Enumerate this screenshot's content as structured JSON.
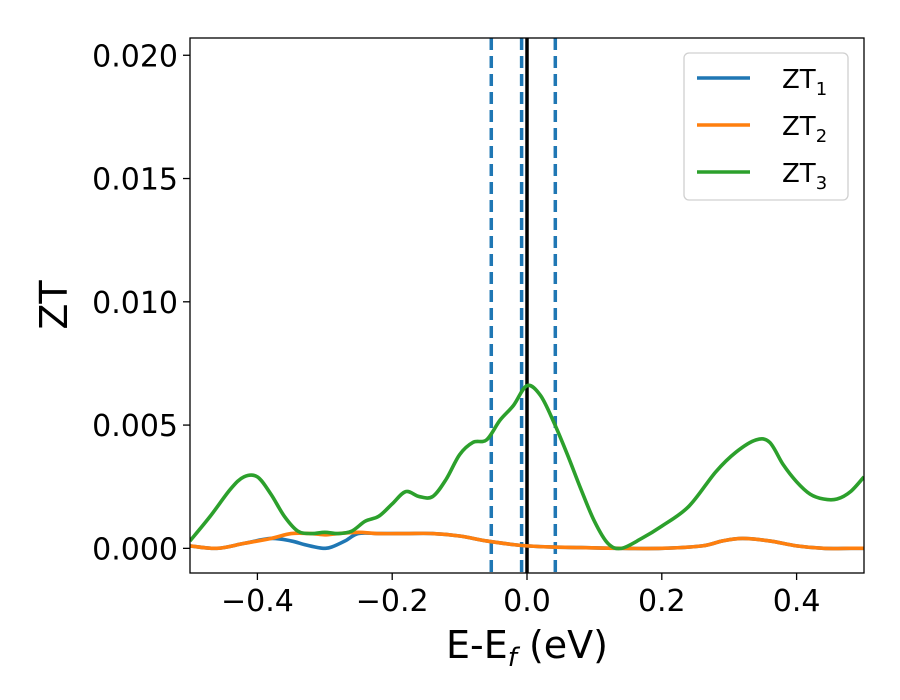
{
  "chart_data": {
    "type": "line",
    "title": "",
    "xlabel": {
      "main": "E-E",
      "sub": "f",
      "rest": " (eV)"
    },
    "ylabel": "ZT",
    "xlim": [
      -0.5,
      0.5
    ],
    "ylim": [
      -0.001,
      0.0207
    ],
    "xticks": [
      -0.4,
      -0.2,
      0.0,
      0.2,
      0.4
    ],
    "xtick_labels": [
      "−0.4",
      "−0.2",
      "0.0",
      "0.2",
      "0.4"
    ],
    "yticks": [
      0.0,
      0.005,
      0.01,
      0.015,
      0.02
    ],
    "ytick_labels": [
      "0.000",
      "0.005",
      "0.010",
      "0.015",
      "0.020"
    ],
    "grid": false,
    "legend_placement": "top-right",
    "series": [
      {
        "name": "ZT",
        "name_sub": "1",
        "color": "#1f77b4",
        "x": [
          -0.5,
          -0.46,
          -0.42,
          -0.38,
          -0.35,
          -0.33,
          -0.31,
          -0.3,
          -0.29,
          -0.27,
          -0.25,
          -0.22,
          -0.18,
          -0.14,
          -0.1,
          -0.06,
          -0.02,
          0.0,
          0.04,
          0.08,
          0.14,
          0.2,
          0.26,
          0.29,
          0.32,
          0.36,
          0.4,
          0.44,
          0.48,
          0.5
        ],
        "y": [
          0.0001,
          0.0,
          0.0002,
          0.0004,
          0.0003,
          0.00015,
          3e-05,
          0.0,
          5e-05,
          0.0003,
          0.0006,
          0.0006,
          0.0006,
          0.0006,
          0.0005,
          0.0003,
          0.00015,
          0.0001,
          5e-05,
          3e-05,
          0.0,
          0.0,
          0.0001,
          0.0003,
          0.0004,
          0.0003,
          0.0001,
          0.0,
          0.0,
          0.0
        ]
      },
      {
        "name": "ZT",
        "name_sub": "2",
        "color": "#ff7f0e",
        "x": [
          -0.5,
          -0.46,
          -0.42,
          -0.38,
          -0.35,
          -0.32,
          -0.3,
          -0.28,
          -0.25,
          -0.22,
          -0.18,
          -0.14,
          -0.1,
          -0.06,
          -0.02,
          0.0,
          0.04,
          0.08,
          0.14,
          0.2,
          0.26,
          0.29,
          0.32,
          0.36,
          0.4,
          0.44,
          0.48,
          0.5
        ],
        "y": [
          0.0001,
          0.0,
          0.0002,
          0.0004,
          0.0006,
          0.0006,
          0.00055,
          0.0006,
          0.00065,
          0.0006,
          0.0006,
          0.0006,
          0.0005,
          0.0003,
          0.00015,
          0.0001,
          5e-05,
          3e-05,
          0.0,
          0.0,
          0.0001,
          0.0003,
          0.0004,
          0.0003,
          0.0001,
          0.0,
          0.0,
          0.0
        ]
      },
      {
        "name": "ZT",
        "name_sub": "3",
        "color": "#2ca02c",
        "x": [
          -0.5,
          -0.47,
          -0.44,
          -0.42,
          -0.4,
          -0.38,
          -0.36,
          -0.34,
          -0.32,
          -0.3,
          -0.28,
          -0.26,
          -0.24,
          -0.22,
          -0.2,
          -0.18,
          -0.16,
          -0.14,
          -0.12,
          -0.1,
          -0.08,
          -0.06,
          -0.04,
          -0.02,
          0.0,
          0.02,
          0.04,
          0.06,
          0.08,
          0.1,
          0.12,
          0.14,
          0.17,
          0.2,
          0.24,
          0.28,
          0.31,
          0.34,
          0.36,
          0.38,
          0.4,
          0.42,
          0.44,
          0.46,
          0.48,
          0.5
        ],
        "y": [
          0.0003,
          0.0013,
          0.0024,
          0.0029,
          0.0029,
          0.0022,
          0.0013,
          0.0007,
          0.0006,
          0.00065,
          0.0006,
          0.0007,
          0.0011,
          0.0013,
          0.0018,
          0.0023,
          0.0021,
          0.0021,
          0.0028,
          0.0038,
          0.0043,
          0.0044,
          0.0052,
          0.0058,
          0.0066,
          0.0062,
          0.0051,
          0.0038,
          0.0024,
          0.0011,
          0.0002,
          0.0,
          0.0004,
          0.0009,
          0.0017,
          0.0031,
          0.0039,
          0.0044,
          0.0043,
          0.0034,
          0.0027,
          0.0022,
          0.002,
          0.002,
          0.0023,
          0.0029
        ]
      }
    ],
    "vertical_lines": [
      {
        "x": -0.053,
        "style": "dashed",
        "color": "#1f77b4"
      },
      {
        "x": -0.008,
        "style": "dashed",
        "color": "#1f77b4"
      },
      {
        "x": 0.042,
        "style": "dashed",
        "color": "#1f77b4"
      },
      {
        "x": 0.0,
        "style": "solid",
        "color": "#000000"
      }
    ]
  }
}
